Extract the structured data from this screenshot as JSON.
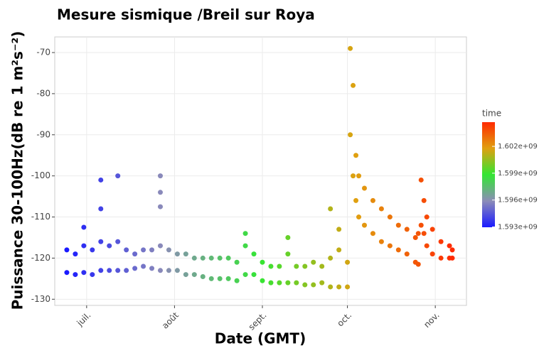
{
  "chart_data": {
    "type": "scatter",
    "title": "Mesure sismique /Breil sur Roya",
    "x_label": "Date (GMT)",
    "y_label": "Puissance 30-100Hz(dB re 1 m²s⁻²)",
    "grid": true,
    "xlim": [
      1592589600,
      1605139200
    ],
    "xticks": [
      {
        "value": 1593561600,
        "label": "juil."
      },
      {
        "value": 1596240000,
        "label": "août"
      },
      {
        "value": 1598918400,
        "label": "sept."
      },
      {
        "value": 1601510400,
        "label": "oct."
      },
      {
        "value": 1604188800,
        "label": "nov."
      }
    ],
    "ylim": [
      -131.5,
      -66.2
    ],
    "yticks": [
      -70,
      -80,
      -90,
      -100,
      -110,
      -120,
      -130
    ],
    "colorbar": {
      "title": "time",
      "lim": [
        1592956800,
        1604707200
      ],
      "colors": [
        "#1a1aff",
        "#8c8cb8",
        "#33e633",
        "#e0a010",
        "#ff2a00"
      ],
      "ticks": [
        {
          "value": 1593000000,
          "label": "1.593e+09"
        },
        {
          "value": 1596000000,
          "label": "1.596e+09"
        },
        {
          "value": 1599000000,
          "label": "1.599e+09"
        },
        {
          "value": 1602000000,
          "label": "1.602e+09"
        }
      ]
    },
    "x": [
      1592956800,
      1592956800,
      1593216000,
      1593216000,
      1593475200,
      1593475200,
      1593475200,
      1593734400,
      1593734400,
      1593993600,
      1593993600,
      1593993600,
      1593993600,
      1594252800,
      1594252800,
      1594512000,
      1594512000,
      1594512000,
      1594771200,
      1594771200,
      1595030400,
      1595030400,
      1595289600,
      1595289600,
      1595548800,
      1595548800,
      1595808000,
      1595808000,
      1595808000,
      1595808000,
      1595808000,
      1596067200,
      1596067200,
      1596326400,
      1596326400,
      1596585600,
      1596585600,
      1596844800,
      1596844800,
      1597104000,
      1597104000,
      1597363200,
      1597363200,
      1597622400,
      1597622400,
      1597881600,
      1597881600,
      1598140800,
      1598140800,
      1598400000,
      1598400000,
      1598400000,
      1598659200,
      1598659200,
      1598918400,
      1598918400,
      1599177600,
      1599177600,
      1599436800,
      1599436800,
      1599696000,
      1599696000,
      1599696000,
      1599955200,
      1599955200,
      1600214400,
      1600214400,
      1600473600,
      1600473600,
      1600732800,
      1600732800,
      1600992000,
      1600992000,
      1600992000,
      1601251200,
      1601251200,
      1601251200,
      1601510400,
      1601510400,
      1601596800,
      1601596800,
      1601683200,
      1601683200,
      1601769600,
      1601769600,
      1601856000,
      1601856000,
      1602028800,
      1602028800,
      1602288000,
      1602288000,
      1602547200,
      1602547200,
      1602806400,
      1602806400,
      1603065600,
      1603065600,
      1603324800,
      1603324800,
      1603584000,
      1603584000,
      1603670400,
      1603670400,
      1603756800,
      1603756800,
      1603843200,
      1603843200,
      1603929600,
      1603929600,
      1604102400,
      1604102400,
      1604361600,
      1604361600,
      1604620800,
      1604620800,
      1604707200,
      1604707200
    ],
    "values": [
      -118,
      -123.5,
      -119,
      -124,
      -117,
      -123.5,
      -112.5,
      -118,
      -124,
      -116,
      -123,
      -101,
      -108,
      -117,
      -123,
      -116,
      -123,
      -100,
      -118,
      -123,
      -119,
      -122.5,
      -118,
      -122,
      -118,
      -122.5,
      -117,
      -123,
      -100,
      -104,
      -107.5,
      -118,
      -123,
      -119,
      -123,
      -119,
      -124,
      -120,
      -124,
      -120,
      -124.5,
      -120,
      -125,
      -120,
      -125,
      -120,
      -125,
      -121,
      -125.5,
      -117,
      -124,
      -114,
      -119,
      -124,
      -121,
      -125.5,
      -122,
      -126,
      -122,
      -126,
      -119,
      -126,
      -115,
      -122,
      -126,
      -122,
      -126.5,
      -121,
      -126.5,
      -122,
      -126,
      -120,
      -127,
      -108,
      -118,
      -127,
      -113,
      -121,
      -127,
      -69,
      -90,
      -78,
      -100,
      -95,
      -106,
      -100,
      -110,
      -103,
      -112,
      -106,
      -114,
      -108,
      -116,
      -110,
      -117,
      -112,
      -118,
      -113,
      -119,
      -115,
      -121,
      -114,
      -121.5,
      -101,
      -112,
      -106,
      -114,
      -110,
      -117,
      -113,
      -119,
      -116,
      -120,
      -117,
      -120,
      -118,
      -120
    ]
  }
}
